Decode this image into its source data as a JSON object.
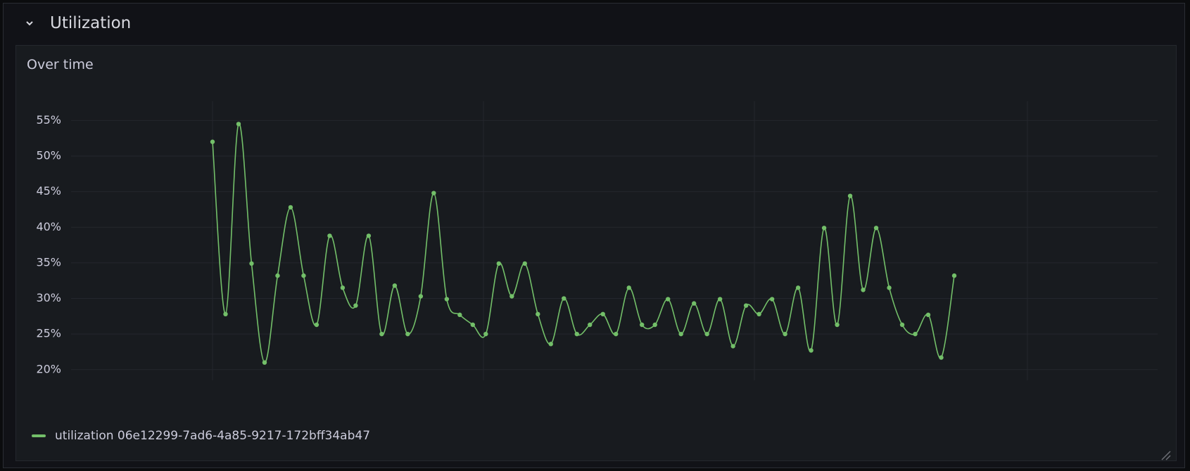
{
  "header": {
    "title": "Utilization"
  },
  "chart_data": {
    "type": "line",
    "title": "Over time",
    "series": [
      {
        "name": "utilization 06e12299-7ad6-4a85-9217-172bff34ab47",
        "color": "#73bf69",
        "values": [
          52.0,
          27.8,
          54.5,
          34.9,
          21.0,
          33.2,
          42.8,
          33.2,
          26.3,
          38.8,
          31.5,
          29.0,
          38.8,
          25.0,
          31.8,
          25.0,
          30.3,
          44.8,
          29.9,
          27.7,
          26.3,
          25.0,
          34.9,
          30.3,
          34.9,
          27.8,
          23.6,
          30.0,
          25.0,
          26.3,
          27.8,
          25.0,
          31.5,
          26.3,
          26.3,
          29.9,
          25.0,
          29.3,
          25.0,
          29.9,
          23.3,
          29.0,
          27.8,
          29.9,
          25.0,
          31.5,
          22.7,
          39.9,
          26.3,
          44.4,
          31.2,
          39.9,
          31.5,
          26.3,
          25.0,
          27.7,
          21.7,
          33.2
        ]
      }
    ],
    "ylim": [
      18.5,
      57.7
    ],
    "yticks": [
      {
        "value": 20,
        "label": "20%"
      },
      {
        "value": 25,
        "label": "25%"
      },
      {
        "value": 30,
        "label": "30%"
      },
      {
        "value": 35,
        "label": "35%"
      },
      {
        "value": 40,
        "label": "40%"
      },
      {
        "value": 45,
        "label": "45%"
      },
      {
        "value": 50,
        "label": "50%"
      },
      {
        "value": 55,
        "label": "55%"
      }
    ],
    "grid": true,
    "legend": "bottom-left"
  }
}
